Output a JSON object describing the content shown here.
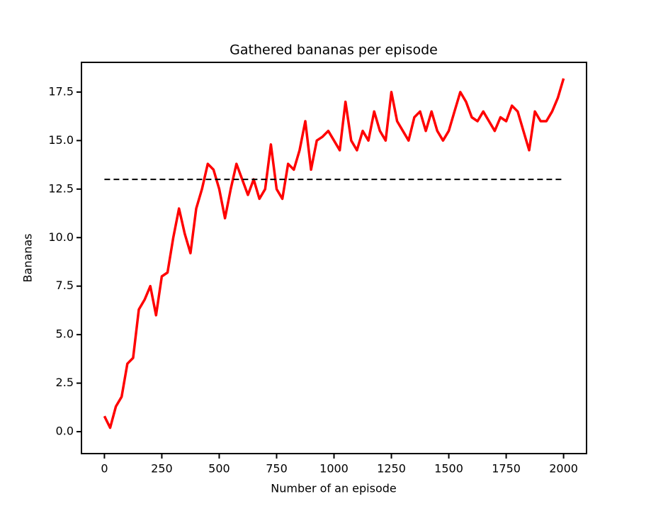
{
  "chart_data": {
    "type": "line",
    "title": "Gathered bananas per episode",
    "xlabel": "Number of an episode",
    "ylabel": "Bananas",
    "x": [
      0,
      25,
      50,
      75,
      100,
      125,
      150,
      175,
      200,
      225,
      250,
      275,
      300,
      325,
      350,
      375,
      400,
      425,
      450,
      475,
      500,
      525,
      550,
      575,
      600,
      625,
      650,
      675,
      700,
      725,
      750,
      775,
      800,
      825,
      850,
      875,
      900,
      925,
      950,
      975,
      1000,
      1025,
      1050,
      1075,
      1100,
      1125,
      1150,
      1175,
      1200,
      1225,
      1250,
      1275,
      1300,
      1325,
      1350,
      1375,
      1400,
      1425,
      1450,
      1475,
      1500,
      1525,
      1550,
      1575,
      1600,
      1625,
      1650,
      1675,
      1700,
      1725,
      1750,
      1775,
      1800,
      1825,
      1850,
      1875,
      1900,
      1925,
      1950,
      1975,
      2000
    ],
    "series": [
      {
        "color": "#ff0000",
        "style": "solid",
        "values": [
          0.8,
          0.2,
          1.3,
          1.8,
          3.5,
          3.8,
          6.3,
          6.8,
          7.5,
          6.0,
          8.0,
          8.2,
          10.0,
          11.5,
          10.2,
          9.2,
          11.5,
          12.5,
          13.8,
          13.5,
          12.5,
          11.0,
          12.5,
          13.8,
          13.0,
          12.2,
          13.0,
          12.0,
          12.5,
          14.8,
          12.5,
          12.0,
          13.8,
          13.5,
          14.5,
          16.0,
          13.5,
          15.0,
          15.2,
          15.5,
          15.0,
          14.5,
          17.0,
          15.0,
          14.5,
          15.5,
          15.0,
          16.5,
          15.5,
          15.0,
          17.5,
          16.0,
          15.5,
          15.0,
          16.2,
          16.5,
          15.5,
          16.5,
          15.5,
          15.0,
          15.5,
          16.5,
          17.5,
          17.0,
          16.2,
          16.0,
          16.5,
          16.0,
          15.5,
          16.2,
          16.0,
          16.8,
          16.5,
          15.5,
          14.5,
          16.5,
          16.0,
          16.0,
          16.5,
          17.2,
          18.2
        ]
      },
      {
        "color": "#000000",
        "style": "dashed",
        "x": [
          0,
          2000
        ],
        "values": [
          13,
          13
        ]
      }
    ],
    "xlim": [
      -100,
      2100
    ],
    "ylim": [
      -1.13,
      19.03
    ],
    "xticks": [
      0,
      250,
      500,
      750,
      1000,
      1250,
      1500,
      1750,
      2000
    ],
    "yticks": [
      {
        "value": 0,
        "label": "0.0"
      },
      2.5,
      {
        "value": 5,
        "label": "5.0"
      },
      7.5,
      {
        "value": 10,
        "label": "10.0"
      },
      12.5,
      {
        "value": 15,
        "label": "15.0"
      },
      17.5
    ],
    "grid": false
  }
}
